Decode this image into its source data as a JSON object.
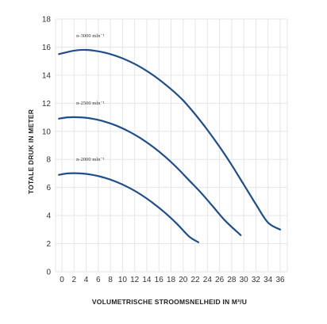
{
  "chart_data": {
    "type": "line",
    "xlabel": "VOLUMETRISCHE STROOMSNELHEID IN M³/U",
    "ylabel": "TOTALE DRUK IN METER",
    "xlim": [
      0,
      36
    ],
    "ylim": [
      0,
      18
    ],
    "x_ticks": [
      0,
      2,
      4,
      6,
      8,
      10,
      12,
      14,
      16,
      18,
      20,
      22,
      24,
      26,
      28,
      30,
      32,
      34,
      36
    ],
    "y_ticks": [
      0,
      2,
      4,
      6,
      8,
      10,
      12,
      14,
      16,
      18
    ],
    "grid": true,
    "line_color": "#1f4e8c",
    "series": [
      {
        "name": "n-3000 mln⁻¹",
        "x": [
          -0.5,
          2,
          4,
          6,
          8,
          10,
          12,
          14,
          16,
          18,
          20,
          22,
          24,
          26,
          28,
          30,
          32,
          34,
          36
        ],
        "values": [
          15.5,
          15.75,
          15.8,
          15.7,
          15.5,
          15.2,
          14.8,
          14.3,
          13.7,
          13.0,
          12.2,
          11.2,
          10.1,
          8.9,
          7.6,
          6.2,
          4.8,
          3.5,
          3.0
        ]
      },
      {
        "name": "n-2500 mln⁻¹",
        "x": [
          -0.5,
          1,
          3,
          5,
          7,
          9,
          11,
          13,
          15,
          17,
          19,
          21,
          23,
          25,
          27,
          29.5
        ],
        "values": [
          10.9,
          11.0,
          11.0,
          10.9,
          10.7,
          10.4,
          10.0,
          9.5,
          8.9,
          8.2,
          7.4,
          6.5,
          5.6,
          4.6,
          3.6,
          2.6
        ]
      },
      {
        "name": "n-2000 mln⁻¹",
        "x": [
          -0.5,
          1,
          3,
          5,
          7,
          9,
          11,
          13,
          15,
          17,
          19,
          21,
          22.5
        ],
        "values": [
          6.9,
          7.0,
          7.0,
          6.9,
          6.7,
          6.4,
          6.0,
          5.5,
          4.9,
          4.2,
          3.4,
          2.5,
          2.1
        ]
      }
    ]
  }
}
